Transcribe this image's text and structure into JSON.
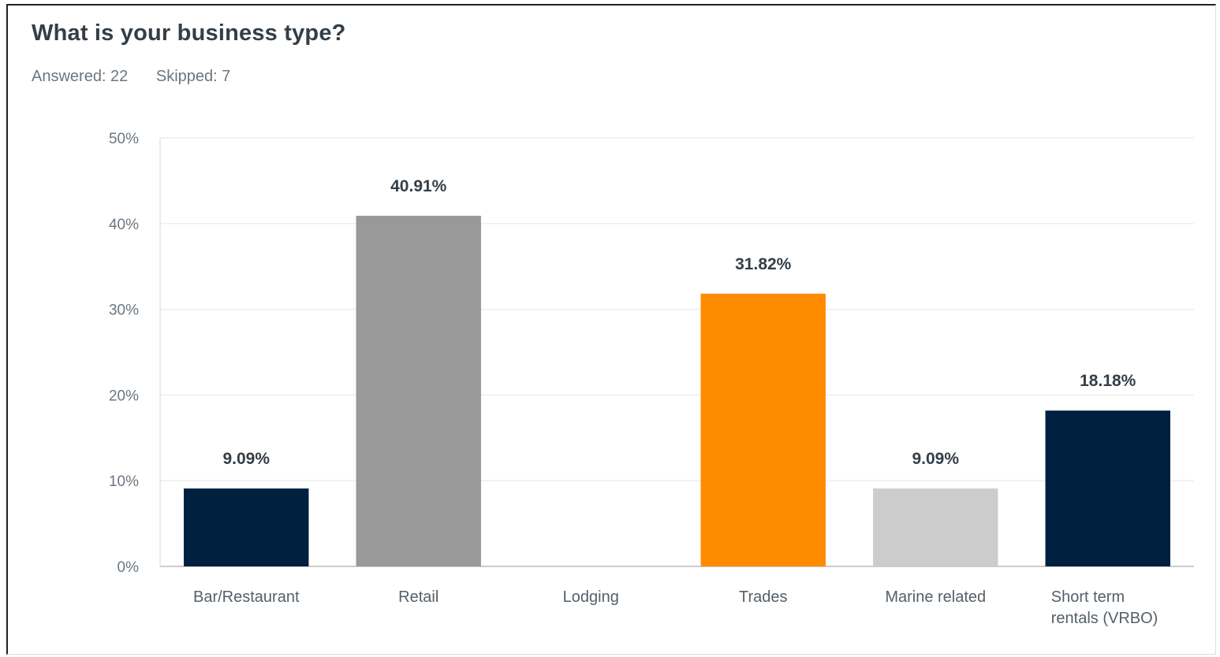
{
  "header": {
    "title": "What is your business type?",
    "answered": "Answered: 22",
    "skipped": "Skipped: 7"
  },
  "chart_data": {
    "type": "bar",
    "categories": [
      "Bar/Restaurant",
      "Retail",
      "Lodging",
      "Trades",
      "Marine related",
      "Short term rentals (VRBO)"
    ],
    "values": [
      9.09,
      40.91,
      0,
      31.82,
      9.09,
      18.18
    ],
    "data_labels": [
      "9.09%",
      "40.91%",
      "",
      "31.82%",
      "9.09%",
      "18.18%"
    ],
    "colors": [
      "#00203f",
      "#999999",
      "#cccccc",
      "#ff8b00",
      "#cccccc",
      "#00203f"
    ],
    "yticks": [
      0,
      10,
      20,
      30,
      40,
      50
    ],
    "ytick_labels": [
      "0%",
      "10%",
      "20%",
      "30%",
      "40%",
      "50%"
    ],
    "ylim": [
      0,
      50
    ],
    "grid": true,
    "legend": "none"
  }
}
